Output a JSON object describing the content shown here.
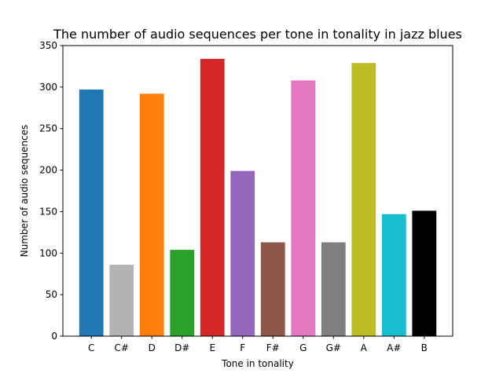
{
  "chart_data": {
    "type": "bar",
    "title": "The number of audio sequences per tone in tonality in jazz blues",
    "xlabel": "Tone in tonality",
    "ylabel": "Number of audio sequences",
    "categories": [
      "C",
      "C#",
      "D",
      "D#",
      "E",
      "F",
      "F#",
      "G",
      "G#",
      "A",
      "A#",
      "B"
    ],
    "values": [
      297,
      86,
      292,
      104,
      334,
      199,
      113,
      308,
      113,
      329,
      147,
      151
    ],
    "colors": [
      "#1f77b4",
      "#b3b3b3",
      "#ff7f0e",
      "#2ca02c",
      "#d62728",
      "#9467bd",
      "#8c564b",
      "#e377c2",
      "#7f7f7f",
      "#bcbd22",
      "#17becf",
      "#000000"
    ],
    "ylim": [
      0,
      350
    ],
    "yticks": [
      "0",
      "50",
      "100",
      "150",
      "200",
      "250",
      "300",
      "350"
    ],
    "grid": false,
    "legend": "none"
  }
}
